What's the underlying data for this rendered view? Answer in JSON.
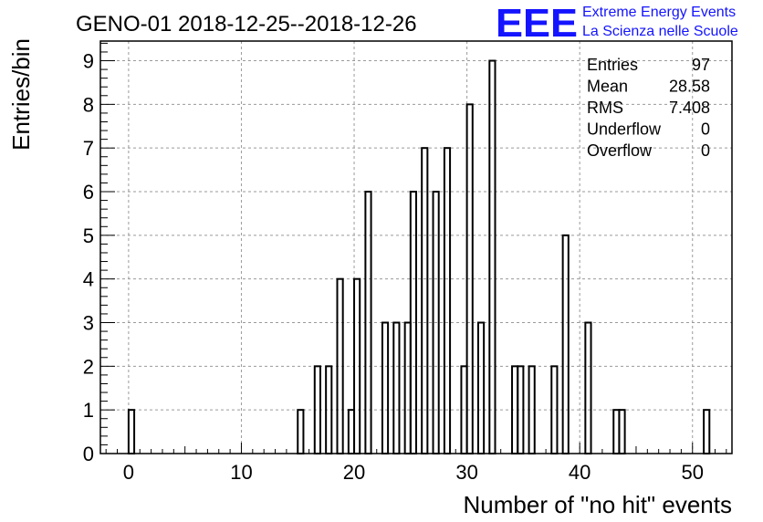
{
  "chart_data": {
    "type": "bar",
    "title": "GENO-01 2018-12-25--2018-12-26",
    "xlabel": "Number of \"no hit\" events",
    "ylabel": "Entries/bin",
    "xlim": [
      -2.5,
      53.5
    ],
    "ylim": [
      0,
      9.45
    ],
    "x_ticks": [
      0,
      10,
      20,
      30,
      40,
      50
    ],
    "y_ticks": [
      0,
      1,
      2,
      3,
      4,
      5,
      6,
      7,
      8,
      9
    ],
    "grid": true,
    "bin_width": 0.5,
    "bins": [
      {
        "x": 0,
        "value": 1
      },
      {
        "x": 15,
        "value": 1
      },
      {
        "x": 16.5,
        "value": 2
      },
      {
        "x": 17.5,
        "value": 2
      },
      {
        "x": 18.5,
        "value": 4
      },
      {
        "x": 19.5,
        "value": 1
      },
      {
        "x": 20,
        "value": 4
      },
      {
        "x": 21,
        "value": 6
      },
      {
        "x": 22.5,
        "value": 3
      },
      {
        "x": 23.5,
        "value": 3
      },
      {
        "x": 24.5,
        "value": 3
      },
      {
        "x": 25,
        "value": 6
      },
      {
        "x": 26,
        "value": 7
      },
      {
        "x": 27,
        "value": 6
      },
      {
        "x": 28,
        "value": 7
      },
      {
        "x": 29.5,
        "value": 2
      },
      {
        "x": 30,
        "value": 8
      },
      {
        "x": 31,
        "value": 3
      },
      {
        "x": 32,
        "value": 9
      },
      {
        "x": 34,
        "value": 2
      },
      {
        "x": 34.5,
        "value": 2
      },
      {
        "x": 35.5,
        "value": 2
      },
      {
        "x": 37.5,
        "value": 2
      },
      {
        "x": 38.5,
        "value": 5
      },
      {
        "x": 40.5,
        "value": 3
      },
      {
        "x": 43,
        "value": 1
      },
      {
        "x": 43.5,
        "value": 1
      },
      {
        "x": 51,
        "value": 1
      }
    ],
    "stats": [
      {
        "label": "Entries",
        "value": "97"
      },
      {
        "label": "Mean",
        "value": "28.58"
      },
      {
        "label": "RMS",
        "value": "7.408"
      },
      {
        "label": "Underflow",
        "value": "0"
      },
      {
        "label": "Overflow",
        "value": "0"
      }
    ]
  },
  "logo": {
    "mark": "EEE",
    "line1": "Extreme Energy Events",
    "line2": "La Scienza nelle Scuole",
    "color": "#1414ff"
  }
}
